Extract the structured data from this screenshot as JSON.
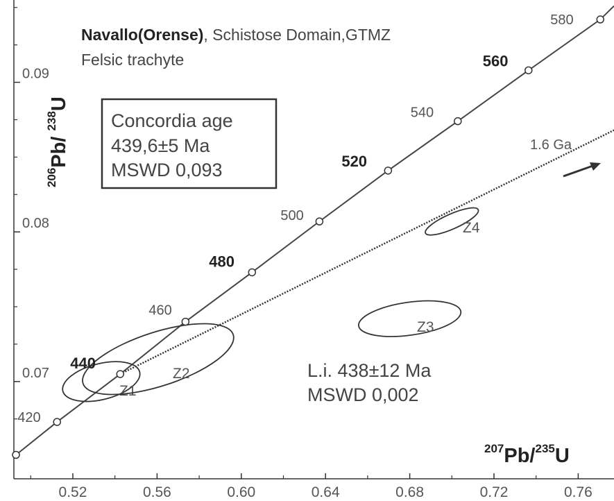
{
  "chart_data": {
    "type": "scatter",
    "title_bold": "Navallo(Orense)",
    "title_rest": ", Schistose Domain,GTMZ",
    "subtitle": "Felsic trachyte",
    "xlabel": {
      "sup1": "207",
      "text1": "Pb/",
      "sup2": "235",
      "text2": "U"
    },
    "ylabel": {
      "sup1": "206",
      "text1": "Pb/ ",
      "sup2": "238",
      "text2": "U"
    },
    "xlim": [
      0.492,
      0.777
    ],
    "ylim": [
      0.0635,
      0.0955
    ],
    "x_ticks": [
      "0.52",
      "0.56",
      "0.60",
      "0.64",
      "0.68",
      "0.72",
      "0.76"
    ],
    "x_tick_values": [
      0.52,
      0.56,
      0.6,
      0.64,
      0.68,
      0.72,
      0.76
    ],
    "y_ticks": [
      "0.07",
      "0.08",
      "0.09"
    ],
    "y_tick_values": [
      0.07,
      0.08,
      0.09
    ],
    "concordia_points": [
      {
        "age": "420",
        "x": 0.5125,
        "y": 0.0673,
        "bold": false
      },
      {
        "age": "440",
        "x": 0.5425,
        "y": 0.0705,
        "bold": true
      },
      {
        "age": "460",
        "x": 0.5735,
        "y": 0.074,
        "bold": false
      },
      {
        "age": "480",
        "x": 0.6051,
        "y": 0.0773,
        "bold": true
      },
      {
        "age": "500",
        "x": 0.6371,
        "y": 0.0807,
        "bold": false
      },
      {
        "age": "520",
        "x": 0.6697,
        "y": 0.0841,
        "bold": true
      },
      {
        "age": "540",
        "x": 0.7028,
        "y": 0.0874,
        "bold": false
      },
      {
        "age": "560",
        "x": 0.7364,
        "y": 0.0908,
        "bold": true
      },
      {
        "age": "580",
        "x": 0.7705,
        "y": 0.0942,
        "bold": false
      }
    ],
    "concordia_extra_start": {
      "x": 0.493,
      "y": 0.0651
    },
    "discordia": {
      "x1": 0.5425,
      "y1": 0.0705,
      "x2": 0.777,
      "y2": 0.0868,
      "label": "1.6 Ga"
    },
    "ellipses": [
      {
        "name": "Z1",
        "cx": 0.5335,
        "cy": 0.07,
        "rx_data": 0.0188,
        "ry_data": 0.0012,
        "angle_deg": -14
      },
      {
        "name": "Z2",
        "cx": 0.5605,
        "cy": 0.0715,
        "rx_data": 0.0375,
        "ry_data": 0.0018,
        "angle_deg": -18
      },
      {
        "name": "Z3",
        "cx": 0.68,
        "cy": 0.0742,
        "rx_data": 0.0245,
        "ry_data": 0.0011,
        "angle_deg": -8
      },
      {
        "name": "Z4",
        "cx": 0.7,
        "cy": 0.0807,
        "rx_data": 0.0137,
        "ry_data": 0.0005,
        "angle_deg": -24
      }
    ],
    "concordia_box": [
      "Concordia age",
      "439,6±5 Ma",
      "MSWD 0,093"
    ],
    "intercept_text": [
      "L.i. 438±12 Ma",
      "MSWD 0,002"
    ],
    "grid": false,
    "legend": "none"
  }
}
